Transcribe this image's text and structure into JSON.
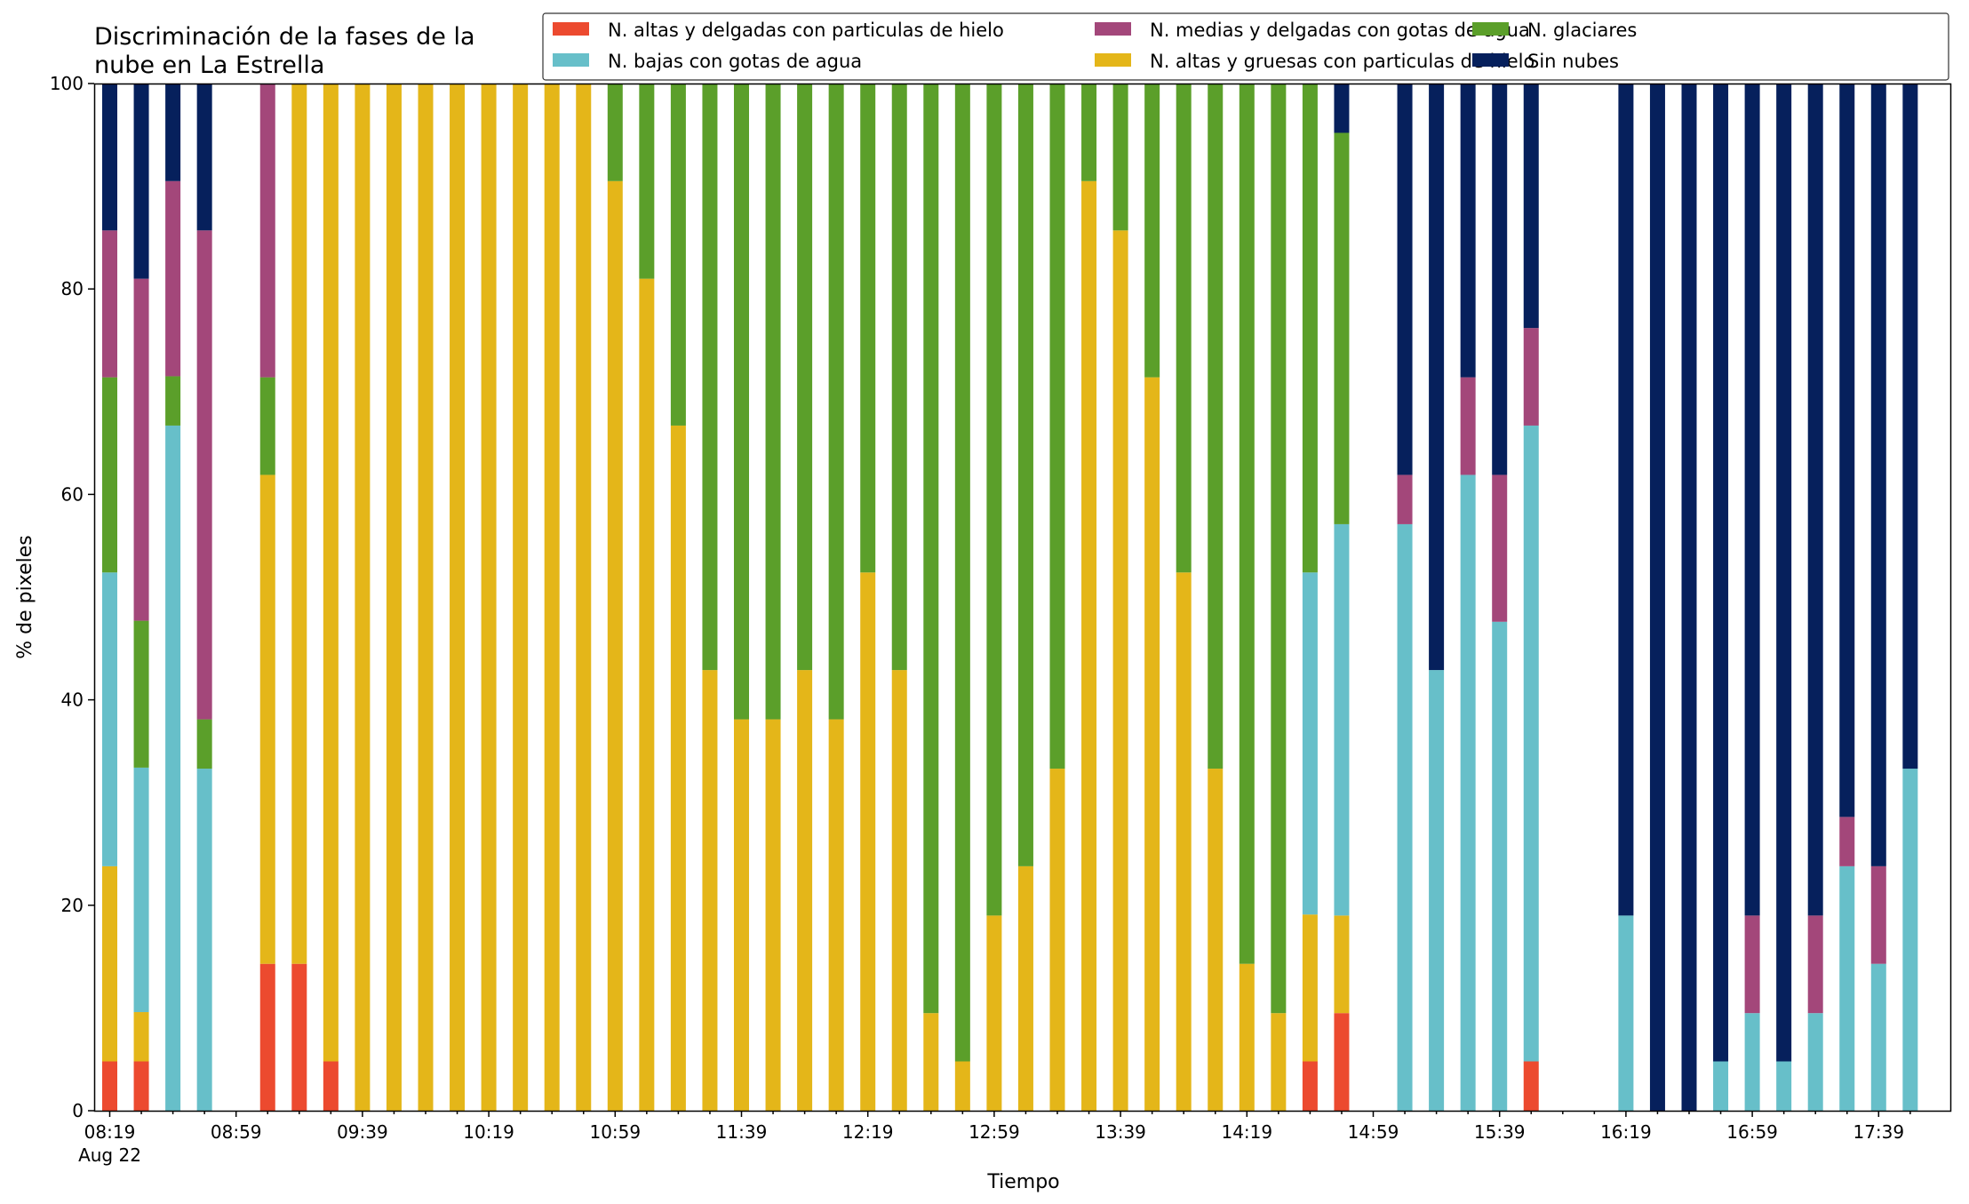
{
  "chart_data": {
    "type": "bar",
    "stacked": true,
    "title": "Discriminación de la fases de la nube en La Estrella",
    "title_lines": [
      "Discriminación de la fases de la",
      "nube en La Estrella"
    ],
    "xlabel": "Tiempo",
    "ylabel": "% de pixeles",
    "ylim": [
      0,
      100
    ],
    "yticks": [
      "0",
      "20",
      "40",
      "60",
      "80",
      "100"
    ],
    "xticks": [
      "08:19",
      "08:59",
      "09:39",
      "10:19",
      "10:59",
      "11:39",
      "12:19",
      "12:59",
      "13:39",
      "14:19",
      "14:59",
      "15:39",
      "16:19",
      "16:59",
      "17:39"
    ],
    "xtick_sub": "Aug 22",
    "grid": false,
    "legend_position": "top-right",
    "legend_order": [
      0,
      2,
      4,
      1,
      3,
      5
    ],
    "x": [
      "08:19",
      "08:29",
      "08:39",
      "08:49",
      "08:59",
      "09:09",
      "09:19",
      "09:29",
      "09:39",
      "09:49",
      "09:59",
      "10:09",
      "10:19",
      "10:29",
      "10:39",
      "10:49",
      "10:59",
      "11:09",
      "11:19",
      "11:29",
      "11:39",
      "11:49",
      "11:59",
      "12:09",
      "12:19",
      "12:29",
      "12:39",
      "12:49",
      "12:59",
      "13:09",
      "13:19",
      "13:29",
      "13:39",
      "13:49",
      "13:59",
      "14:09",
      "14:19",
      "14:29",
      "14:39",
      "14:49",
      "14:59",
      "15:09",
      "15:19",
      "15:29",
      "15:39",
      "15:49",
      "15:59",
      "16:09",
      "16:19",
      "16:29",
      "16:39",
      "16:49",
      "16:59",
      "17:09",
      "17:19",
      "17:29",
      "17:39",
      "17:49"
    ],
    "series": [
      {
        "name": "N. altas y delgadas con particulas de hielo",
        "color": "#ec4a2f",
        "values": [
          4.8,
          4.8,
          0,
          0,
          0,
          14.3,
          14.3,
          4.8,
          0,
          0,
          0,
          0,
          0,
          0,
          0,
          0,
          0,
          0,
          0,
          0,
          0,
          0,
          0,
          0,
          0,
          0,
          0,
          0,
          0,
          0,
          0,
          0,
          0,
          0,
          0,
          0,
          0,
          0,
          4.8,
          9.5,
          0,
          0,
          0,
          0,
          0,
          4.8,
          0,
          0,
          0,
          0,
          0,
          0,
          0,
          0,
          0,
          0,
          0,
          0
        ]
      },
      {
        "name": "N. altas y gruesas con particulas de hielo",
        "color": "#e4b619",
        "values": [
          19.0,
          4.8,
          0,
          0,
          0,
          47.6,
          85.7,
          95.2,
          100,
          100,
          100,
          100,
          100,
          100,
          100,
          100,
          90.5,
          81.0,
          66.7,
          42.9,
          38.1,
          38.1,
          42.9,
          38.1,
          52.4,
          42.9,
          9.5,
          4.8,
          19.0,
          23.8,
          33.3,
          90.5,
          85.7,
          71.4,
          52.4,
          33.3,
          14.3,
          9.5,
          14.3,
          9.5,
          0,
          0,
          0,
          0,
          0,
          0,
          0,
          0,
          0,
          0,
          0,
          0,
          0,
          0,
          0,
          0,
          0,
          0
        ]
      },
      {
        "name": "N. bajas con gotas de agua",
        "color": "#67bfc9",
        "values": [
          28.6,
          23.8,
          66.7,
          33.3,
          0,
          0,
          0,
          0,
          0,
          0,
          0,
          0,
          0,
          0,
          0,
          0,
          0,
          0,
          0,
          0,
          0,
          0,
          0,
          0,
          0,
          0,
          0,
          0,
          0,
          0,
          0,
          0,
          0,
          0,
          0,
          0,
          0,
          0,
          33.3,
          38.1,
          0,
          57.1,
          42.9,
          61.9,
          47.6,
          61.9,
          0,
          0,
          19.0,
          0,
          0,
          4.8,
          9.5,
          4.8,
          9.5,
          23.8,
          14.3,
          33.3
        ]
      },
      {
        "name": "N. glaciares",
        "color": "#5b9f2a",
        "values": [
          19.0,
          14.3,
          4.8,
          4.8,
          0,
          9.5,
          0,
          0,
          0,
          0,
          0,
          0,
          0,
          0,
          0,
          0,
          9.5,
          19.0,
          33.3,
          57.1,
          61.9,
          61.9,
          57.1,
          61.9,
          47.6,
          57.1,
          90.5,
          95.2,
          81.0,
          76.2,
          66.7,
          9.5,
          14.3,
          28.6,
          47.6,
          66.7,
          85.7,
          90.5,
          47.6,
          38.1,
          0,
          0,
          0,
          0,
          0,
          0,
          0,
          0,
          0,
          0,
          0,
          0,
          0,
          0,
          0,
          0,
          0,
          0
        ]
      },
      {
        "name": "N. medias y delgadas con gotas de agua",
        "color": "#a3477a",
        "values": [
          14.3,
          33.3,
          19.0,
          47.6,
          0,
          28.6,
          0,
          0,
          0,
          0,
          0,
          0,
          0,
          0,
          0,
          0,
          0,
          0,
          0,
          0,
          0,
          0,
          0,
          0,
          0,
          0,
          0,
          0,
          0,
          0,
          0,
          0,
          0,
          0,
          0,
          0,
          0,
          0,
          0,
          0,
          0,
          4.8,
          0,
          9.5,
          14.3,
          9.5,
          0,
          0,
          0,
          0,
          0,
          0,
          9.5,
          0,
          9.5,
          4.8,
          9.5,
          0
        ]
      },
      {
        "name": "Sin nubes",
        "color": "#06205c",
        "values": [
          14.3,
          19.0,
          9.5,
          14.3,
          0,
          0,
          0,
          0,
          0,
          0,
          0,
          0,
          0,
          0,
          0,
          0,
          0,
          0,
          0,
          0,
          0,
          0,
          0,
          0,
          0,
          0,
          0,
          0,
          0,
          0,
          0,
          0,
          0,
          0,
          0,
          0,
          0,
          0,
          0,
          4.8,
          0,
          38.1,
          57.1,
          28.6,
          38.1,
          23.8,
          0,
          0,
          81.0,
          100,
          100,
          95.2,
          81.0,
          95.2,
          81.0,
          71.4,
          76.2,
          66.7
        ]
      }
    ]
  }
}
